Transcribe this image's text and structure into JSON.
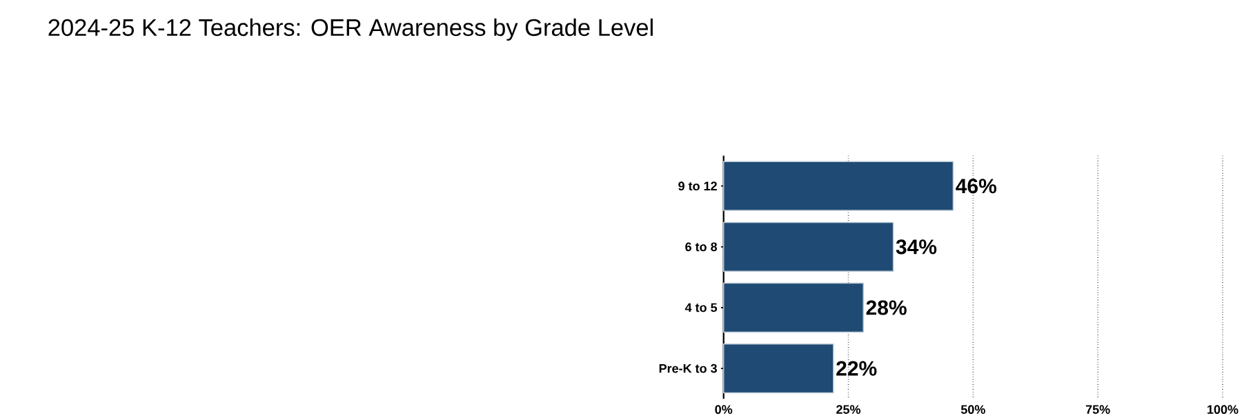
{
  "chart_data": {
    "type": "bar",
    "orientation": "horizontal",
    "title": "2024-25 K-12 Teachers: OER Awareness by Grade Level",
    "categories": [
      "9 to 12",
      "6 to 8",
      "4 to 5",
      "Pre-K to 3"
    ],
    "values": [
      46,
      34,
      28,
      22
    ],
    "value_labels": [
      "46%",
      "34%",
      "28%",
      "22%"
    ],
    "color": "#1f4a73",
    "xlim": [
      0,
      100
    ],
    "xticks": [
      {
        "value": 0,
        "label": "0%"
      },
      {
        "value": 25,
        "label": "25%"
      },
      {
        "value": 50,
        "label": "50%"
      },
      {
        "value": 75,
        "label": "75%"
      },
      {
        "value": 100,
        "label": "100%"
      }
    ],
    "grid": "x"
  }
}
